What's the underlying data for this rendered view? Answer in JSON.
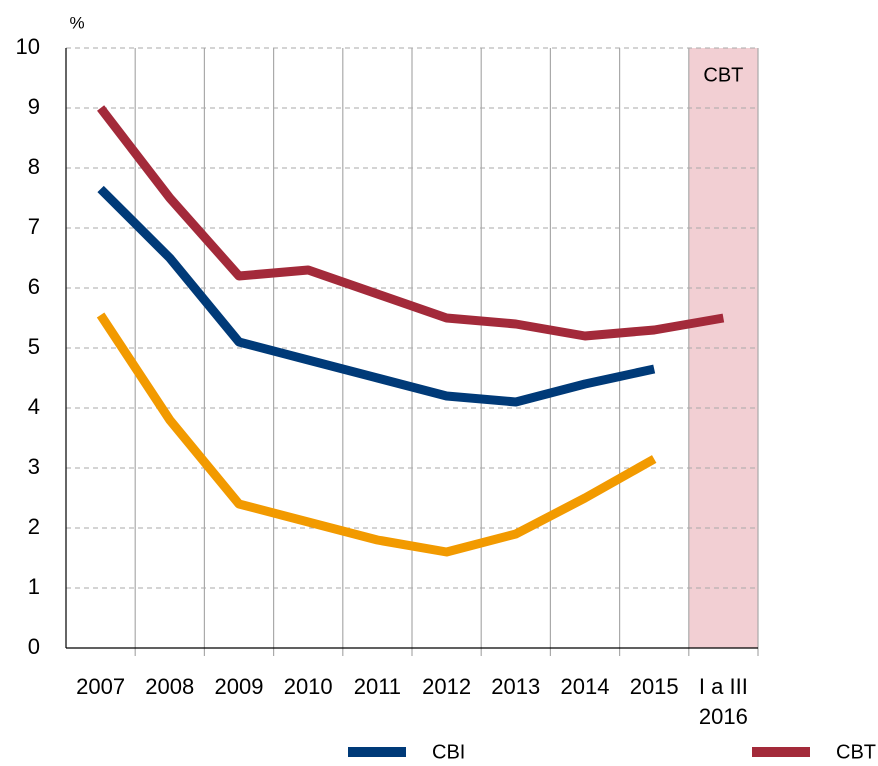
{
  "chart_data": {
    "type": "line",
    "y_unit": "%",
    "categories": [
      "2007",
      "2008",
      "2009",
      "2010",
      "2011",
      "2012",
      "2013",
      "2014",
      "2015",
      "I a III\n2016"
    ],
    "series": [
      {
        "name": "CBI",
        "color": "#003a78",
        "values": [
          7.65,
          6.5,
          5.1,
          4.8,
          4.5,
          4.2,
          4.1,
          4.4,
          4.65,
          null
        ]
      },
      {
        "name": "CBT",
        "color": "#a32a3a",
        "values": [
          9.0,
          7.5,
          6.2,
          6.3,
          5.9,
          5.5,
          5.4,
          5.2,
          5.3,
          5.5
        ]
      },
      {
        "color": "#f29a00",
        "values": [
          5.55,
          3.8,
          2.4,
          2.1,
          1.8,
          1.6,
          1.9,
          2.5,
          3.15,
          null
        ]
      }
    ],
    "shaded_category": 9,
    "shade_color": "#f2cfd3",
    "shade_label": "CBT",
    "ylim": [
      0,
      10
    ],
    "yticks": [
      0,
      1,
      2,
      3,
      4,
      5,
      6,
      7,
      8,
      9,
      10
    ],
    "grid": true
  }
}
